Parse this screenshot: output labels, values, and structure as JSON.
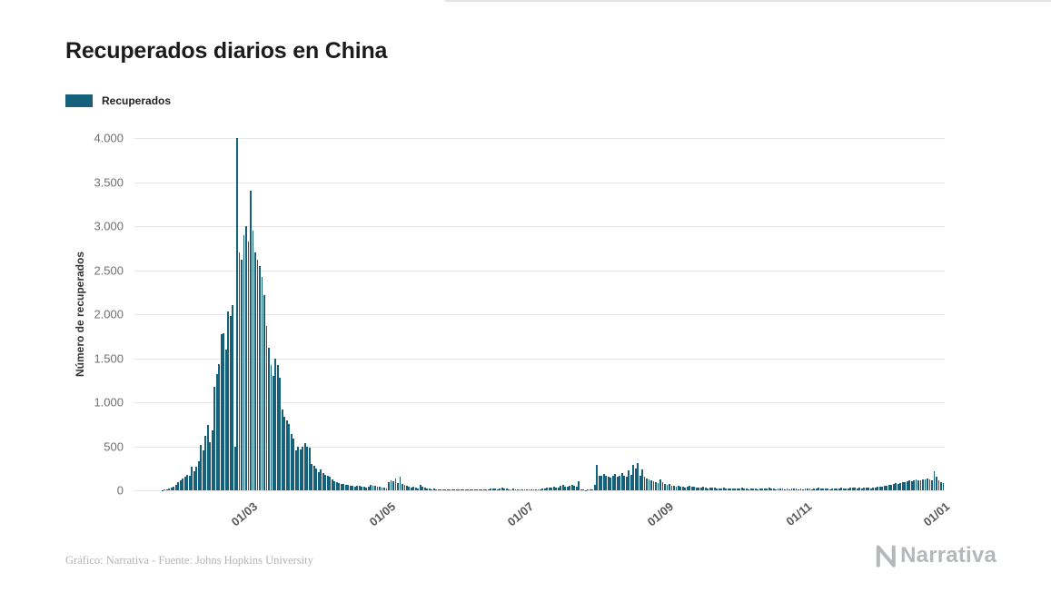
{
  "header": {
    "title": "Recuperados diarios en China"
  },
  "legend": {
    "items": [
      {
        "label": "Recuperados",
        "color": "#15607a"
      }
    ]
  },
  "footer": {
    "credit": "Gráfico: Narrativa - Fuente: Johns Hopkins University"
  },
  "logo": {
    "text": "Narrativa"
  },
  "chart_data": {
    "type": "bar",
    "title": "Recuperados diarios en China",
    "series_name": "Recuperados",
    "xlabel": "",
    "ylabel": "Número de recuperados",
    "ylim": [
      0,
      4000
    ],
    "grid": "horizontal",
    "legend_position": "top-left",
    "color": "#15607a",
    "frequency": "daily",
    "start_date": "2020-01-10",
    "end_date": "2021-01-01",
    "yticks": [
      {
        "value": 0,
        "label": "0"
      },
      {
        "value": 500,
        "label": "500"
      },
      {
        "value": 1000,
        "label": "1.000"
      },
      {
        "value": 1500,
        "label": "1.500"
      },
      {
        "value": 2000,
        "label": "2.000"
      },
      {
        "value": 2500,
        "label": "2.500"
      },
      {
        "value": 3000,
        "label": "3.000"
      },
      {
        "value": 3500,
        "label": "3.500"
      },
      {
        "value": 4000,
        "label": "4.000"
      }
    ],
    "x_ticks": [
      {
        "label": "01/03",
        "index": 51
      },
      {
        "label": "01/05",
        "index": 112
      },
      {
        "label": "01/07",
        "index": 173
      },
      {
        "label": "01/09",
        "index": 235
      },
      {
        "label": "01/11",
        "index": 296
      },
      {
        "label": "01/01",
        "index": 357
      }
    ],
    "values": [
      0,
      0,
      0,
      0,
      0,
      0,
      0,
      0,
      0,
      0,
      0,
      0,
      5,
      10,
      15,
      20,
      30,
      40,
      60,
      90,
      110,
      130,
      155,
      180,
      160,
      265,
      215,
      270,
      330,
      520,
      450,
      620,
      740,
      545,
      680,
      1180,
      1320,
      1430,
      1770,
      1780,
      1600,
      2030,
      1980,
      2100,
      500,
      4000,
      2700,
      2620,
      2900,
      3000,
      2820,
      3400,
      2950,
      2700,
      2620,
      2550,
      2420,
      2220,
      1870,
      1620,
      1420,
      1300,
      1500,
      1420,
      1280,
      920,
      840,
      790,
      750,
      640,
      590,
      450,
      500,
      460,
      490,
      540,
      500,
      480,
      300,
      280,
      250,
      210,
      240,
      200,
      180,
      160,
      150,
      120,
      100,
      90,
      80,
      75,
      70,
      65,
      60,
      55,
      50,
      45,
      50,
      55,
      45,
      40,
      35,
      40,
      65,
      55,
      50,
      45,
      40,
      35,
      30,
      25,
      90,
      110,
      100,
      130,
      80,
      150,
      70,
      60,
      50,
      45,
      35,
      40,
      30,
      25,
      60,
      40,
      30,
      25,
      20,
      15,
      20,
      15,
      12,
      15,
      10,
      12,
      15,
      10,
      10,
      8,
      10,
      8,
      10,
      8,
      6,
      10,
      14,
      10,
      8,
      6,
      10,
      12,
      8,
      10,
      15,
      20,
      24,
      20,
      15,
      25,
      30,
      25,
      20,
      15,
      10,
      20,
      15,
      12,
      15,
      10,
      8,
      10,
      14,
      10,
      8,
      12,
      10,
      15,
      20,
      24,
      30,
      26,
      34,
      40,
      30,
      26,
      50,
      60,
      46,
      40,
      55,
      64,
      50,
      46,
      100,
      15,
      8,
      5,
      10,
      8,
      15,
      60,
      290,
      160,
      170,
      185,
      170,
      150,
      140,
      165,
      185,
      150,
      170,
      200,
      160,
      150,
      230,
      175,
      290,
      250,
      310,
      160,
      240,
      150,
      130,
      120,
      110,
      100,
      90,
      85,
      120,
      95,
      75,
      65,
      70,
      55,
      50,
      45,
      55,
      40,
      45,
      35,
      40,
      50,
      45,
      40,
      35,
      30,
      35,
      40,
      30,
      25,
      30,
      35,
      30,
      25,
      20,
      25,
      30,
      25,
      20,
      25,
      20,
      25,
      20,
      25,
      30,
      25,
      20,
      15,
      20,
      25,
      20,
      15,
      20,
      25,
      20,
      25,
      30,
      25,
      20,
      15,
      20,
      25,
      20,
      15,
      20,
      15,
      20,
      25,
      20,
      15,
      20,
      15,
      20,
      25,
      20,
      15,
      20,
      25,
      30,
      25,
      20,
      25,
      20,
      15,
      20,
      25,
      20,
      25,
      30,
      25,
      20,
      25,
      30,
      35,
      30,
      25,
      30,
      25,
      30,
      35,
      30,
      25,
      30,
      35,
      40,
      45,
      40,
      50,
      55,
      60,
      65,
      70,
      80,
      75,
      85,
      90,
      95,
      100,
      110,
      105,
      115,
      120,
      110,
      115,
      125,
      120,
      130,
      125,
      115,
      220,
      150,
      110,
      90,
      80
    ]
  }
}
